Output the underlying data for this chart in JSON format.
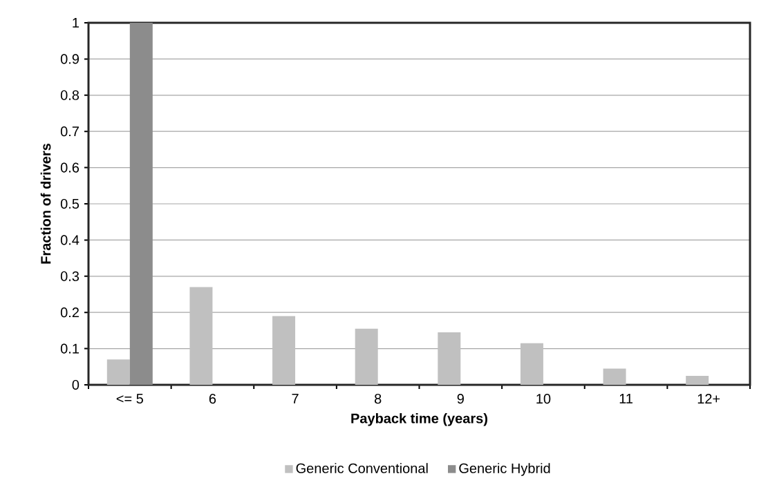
{
  "chart_data": {
    "type": "bar",
    "xlabel": "Payback time (years)",
    "ylabel": "Fraction of drivers",
    "categories": [
      "<= 5",
      "6",
      "7",
      "8",
      "9",
      "10",
      "11",
      "12+"
    ],
    "series": [
      {
        "name": "Generic Conventional",
        "color": "#c0c0c0",
        "values": [
          0.07,
          0.27,
          0.19,
          0.155,
          0.145,
          0.115,
          0.045,
          0.025
        ]
      },
      {
        "name": "Generic Hybrid",
        "color": "#8c8c8c",
        "values": [
          1.0,
          0,
          0,
          0,
          0,
          0,
          0,
          0
        ]
      }
    ],
    "ylim": [
      0,
      1
    ],
    "yticks": [
      0,
      0.1,
      0.2,
      0.3,
      0.4,
      0.5,
      0.6,
      0.7,
      0.8,
      0.9,
      1
    ],
    "grid": "y",
    "legend": "bottom"
  }
}
